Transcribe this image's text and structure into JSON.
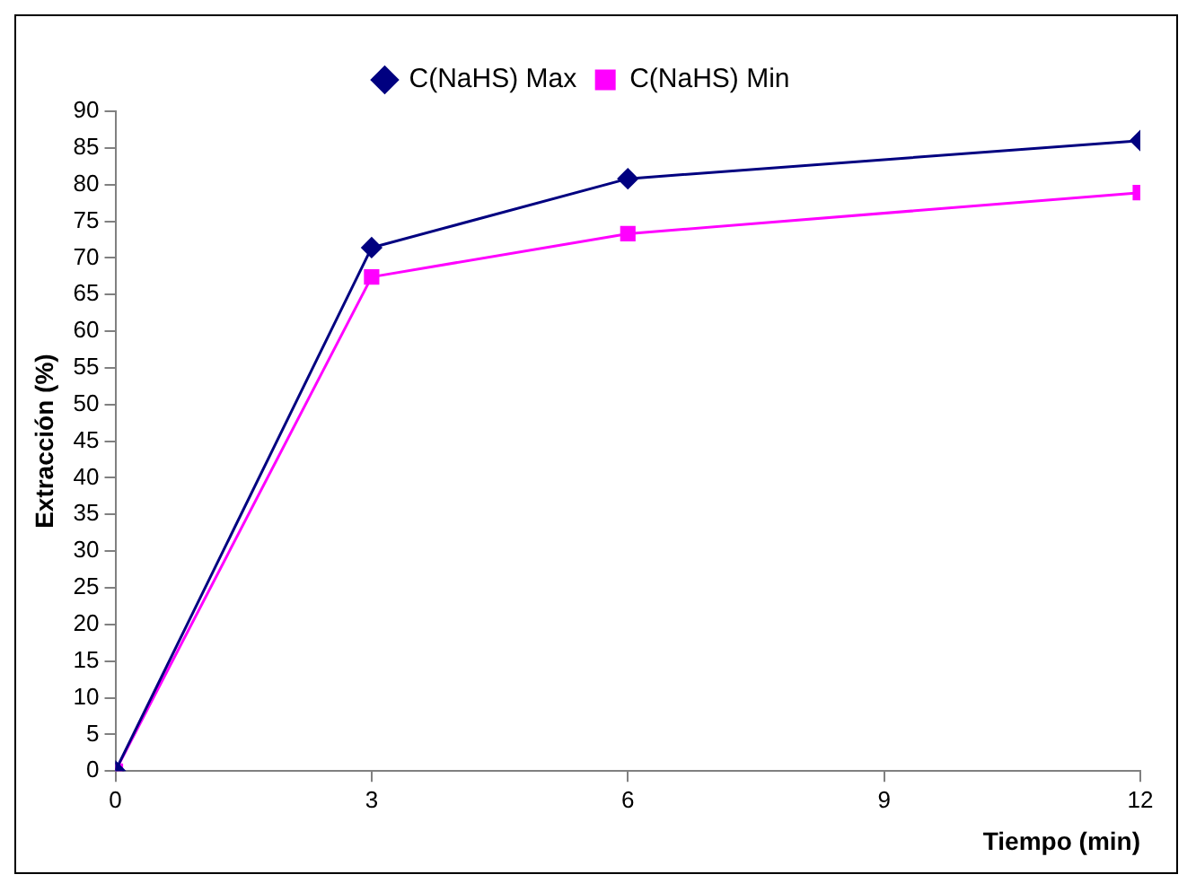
{
  "chart_data": {
    "type": "line",
    "xlabel": "Tiempo (min)",
    "ylabel": "Extracción (%)",
    "x": [
      0,
      3,
      6,
      12
    ],
    "series": [
      {
        "name": "C(NaHS) Max",
        "color": "#000080",
        "marker": "diamond",
        "values": [
          0,
          71.4,
          80.8,
          86
        ]
      },
      {
        "name": "C(NaHS) Min",
        "color": "#ff00ff",
        "marker": "square",
        "values": [
          0,
          67.4,
          73.3,
          78.9
        ]
      }
    ],
    "xlim": [
      0,
      12
    ],
    "xticks": [
      0,
      3,
      6,
      9,
      12
    ],
    "ylim": [
      0,
      90
    ],
    "yticks": [
      0,
      5,
      10,
      15,
      20,
      25,
      30,
      35,
      40,
      45,
      50,
      55,
      60,
      65,
      70,
      75,
      80,
      85,
      90
    ],
    "grid": false,
    "legend": "top",
    "line_style": "solid"
  }
}
